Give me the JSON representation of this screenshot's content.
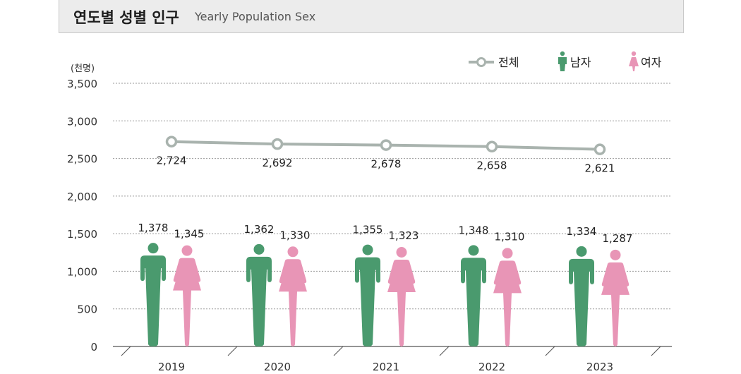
{
  "header": {
    "title_ko": "연도별 성별 인구",
    "title_en": "Yearly Population Sex"
  },
  "chart_data": {
    "type": "bar",
    "title": "연도별 성별 인구 Yearly Population Sex",
    "unit_label": "(천명)",
    "categories": [
      "2019",
      "2020",
      "2021",
      "2022",
      "2023"
    ],
    "ylim": [
      0,
      3500
    ],
    "yticks": [
      0,
      500,
      1000,
      1500,
      2000,
      2500,
      3000,
      3500
    ],
    "ytick_labels": [
      "0",
      "500",
      "1,000",
      "1,500",
      "2,000",
      "2,500",
      "3,000",
      "3,500"
    ],
    "legend": [
      {
        "name": "전체",
        "color": "#a9b3ae"
      },
      {
        "name": "남자",
        "color": "#4a9a6e"
      },
      {
        "name": "여자",
        "color": "#e895b6"
      }
    ],
    "series": [
      {
        "name": "전체",
        "type": "line",
        "color": "#a9b3ae",
        "values": [
          2724,
          2692,
          2678,
          2658,
          2621
        ],
        "labels": [
          "2,724",
          "2,692",
          "2,678",
          "2,658",
          "2,621"
        ]
      },
      {
        "name": "남자",
        "type": "icon-bar",
        "color": "#4a9a6e",
        "values": [
          1378,
          1362,
          1355,
          1348,
          1334
        ],
        "labels": [
          "1,378",
          "1,362",
          "1,355",
          "1,348",
          "1,334"
        ]
      },
      {
        "name": "여자",
        "type": "icon-bar",
        "color": "#e895b6",
        "values": [
          1345,
          1330,
          1323,
          1310,
          1287
        ],
        "labels": [
          "1,345",
          "1,330",
          "1,323",
          "1,310",
          "1,287"
        ]
      }
    ],
    "grid": true,
    "legend_position": "top-right"
  }
}
